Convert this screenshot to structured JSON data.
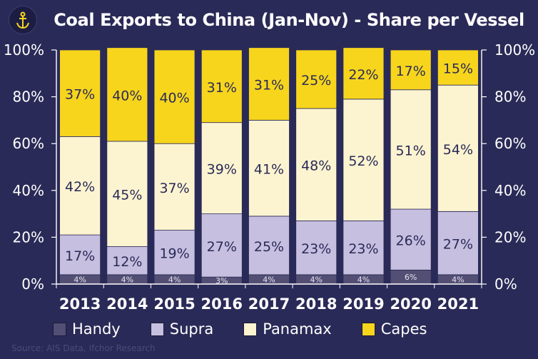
{
  "title": "Coal Exports to China (Jan-Nov) - Share per Vessel",
  "source": "Source: AIS Data, Ifchor Research",
  "colors": {
    "Handy": "#534f74",
    "Supra": "#c6bfdf",
    "Panamax": "#fcf4d0",
    "Capes": "#f7d51c",
    "background": "#2a2a58"
  },
  "chart_data": {
    "type": "bar",
    "stacked": true,
    "title": "Coal Exports to China (Jan-Nov) - Share per Vessel",
    "categories": [
      "2013",
      "2014",
      "2015",
      "2016",
      "2017",
      "2018",
      "2019",
      "2020",
      "2021"
    ],
    "series": [
      {
        "name": "Handy",
        "values": [
          4,
          4,
          4,
          3,
          4,
          4,
          4,
          6,
          4
        ]
      },
      {
        "name": "Supra",
        "values": [
          17,
          12,
          19,
          27,
          25,
          23,
          23,
          26,
          27
        ]
      },
      {
        "name": "Panamax",
        "values": [
          42,
          45,
          37,
          39,
          41,
          48,
          52,
          51,
          54
        ]
      },
      {
        "name": "Capes",
        "values": [
          37,
          40,
          40,
          31,
          31,
          25,
          22,
          17,
          15
        ]
      }
    ],
    "ylim": [
      0,
      100
    ],
    "yticks": [
      "0%",
      "20%",
      "40%",
      "60%",
      "80%",
      "100%"
    ],
    "ylabel_right_mirror": true,
    "legend_position": "bottom",
    "grid": false
  }
}
